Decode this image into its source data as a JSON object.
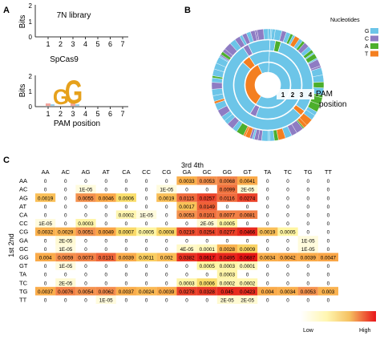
{
  "panels": {
    "a": {
      "label": "A",
      "top_logo": {
        "title": "7N library",
        "ylabel": "Bits",
        "yticks": [
          "2",
          "1",
          "0"
        ]
      },
      "bottom_logo": {
        "title": "SpCas9",
        "ylabel": "Bits",
        "yticks": [
          "2",
          "1",
          "0"
        ],
        "letters": [
          "G",
          "G"
        ]
      },
      "xticks": [
        "1",
        "2",
        "3",
        "4",
        "5",
        "6",
        "7"
      ],
      "xlabel": "PAM position"
    },
    "b": {
      "label": "B",
      "legend_title": "Nucleotides",
      "legend": [
        {
          "name": "G",
          "color": "#6CC5E8"
        },
        {
          "name": "C",
          "color": "#8E7CC3"
        },
        {
          "name": "A",
          "color": "#4CAF2C"
        },
        {
          "name": "T",
          "color": "#F47F20"
        }
      ],
      "ring_labels": [
        "1",
        "2",
        "3",
        "4"
      ],
      "annotation": "PAM position"
    },
    "c": {
      "label": "C",
      "col_header": "3rd 4th",
      "row_header": "1st 2nd",
      "legend_low": "Low",
      "legend_high": "High"
    }
  },
  "chart_data": [
    {
      "type": "sequence-logo",
      "title": "7N library",
      "ylabel": "Bits",
      "xlabel": "PAM position",
      "x": [
        1,
        2,
        3,
        4,
        5,
        6,
        7
      ],
      "ylim": [
        0,
        2
      ],
      "values": [
        0,
        0,
        0,
        0,
        0,
        0,
        0
      ]
    },
    {
      "type": "sequence-logo",
      "title": "SpCas9",
      "ylabel": "Bits",
      "xlabel": "PAM position",
      "x": [
        1,
        2,
        3,
        4,
        5,
        6,
        7
      ],
      "ylim": [
        0,
        2
      ],
      "letters": [
        {
          "position": 2,
          "letter": "G",
          "bits": 1.2
        },
        {
          "position": 3,
          "letter": "G",
          "bits": 1.6
        }
      ]
    },
    {
      "type": "pie",
      "subtype": "sunburst",
      "rings": [
        "1",
        "2",
        "3",
        "4"
      ],
      "annotation": "PAM position"
    },
    {
      "type": "heatmap",
      "col_header": "3rd 4th",
      "row_header": "1st 2nd",
      "columns": [
        "AA",
        "AC",
        "AG",
        "AT",
        "CA",
        "CC",
        "CG",
        "GA",
        "GC",
        "GG",
        "GT",
        "TA",
        "TC",
        "TG",
        "TT"
      ],
      "rows": [
        "AA",
        "AC",
        "AG",
        "AT",
        "CA",
        "CC",
        "CG",
        "GA",
        "GC",
        "GG",
        "GT",
        "TA",
        "TC",
        "TG",
        "TT"
      ],
      "cells": [
        [
          "0",
          "0",
          "0",
          "0",
          "0",
          "0",
          "0",
          "0.0033",
          "0.0053",
          "0.0068",
          "0.0041",
          "0",
          "0",
          "0",
          "0"
        ],
        [
          "0",
          "0",
          "1E-05",
          "0",
          "0",
          "0",
          "1E-05",
          "0",
          "0",
          "0.0099",
          "2E-05",
          "0",
          "0",
          "0",
          "0"
        ],
        [
          "0.0019",
          "0",
          "0.0055",
          "0.0046",
          "0.0006",
          "0",
          "0.0019",
          "0.0115",
          "0.0257",
          "0.0116",
          "0.0274",
          "0",
          "0",
          "0",
          "0"
        ],
        [
          "0",
          "0",
          "0",
          "0",
          "0",
          "0",
          "0",
          "0.0017",
          "0.0149",
          "0",
          "0",
          "0",
          "0",
          "0",
          "0"
        ],
        [
          "0",
          "0",
          "0",
          "0",
          "0.0002",
          "1E-05",
          "0",
          "0.0053",
          "0.0101",
          "0.0077",
          "0.0081",
          "0",
          "0",
          "0",
          "0"
        ],
        [
          "1E-05",
          "0",
          "0.0003",
          "0",
          "0",
          "0",
          "0",
          "0",
          "2E-05",
          "0.0005",
          "0",
          "0",
          "0",
          "0",
          "0"
        ],
        [
          "0.0032",
          "0.0029",
          "0.0051",
          "0.0049",
          "0.0007",
          "0.0005",
          "0.0008",
          "0.0219",
          "0.0254",
          "0.0277",
          "0.0466",
          "0.0019",
          "0.0005",
          "0",
          "0"
        ],
        [
          "0",
          "2E-05",
          "0",
          "0",
          "0",
          "0",
          "0",
          "0",
          "0",
          "0",
          "0",
          "0",
          "0",
          "1E-05",
          "0"
        ],
        [
          "0",
          "1E-05",
          "0",
          "0",
          "0",
          "0",
          "0",
          "4E-05",
          "0.0001",
          "0.0028",
          "0.0009",
          "0",
          "0",
          "1E-05",
          "0"
        ],
        [
          "0.004",
          "0.0059",
          "0.0073",
          "0.0131",
          "0.0039",
          "0.0011",
          "0.002",
          "0.0382",
          "0.0617",
          "0.0495",
          "0.0687",
          "0.0034",
          "0.0042",
          "0.0039",
          "0.0047"
        ],
        [
          "0",
          "1E-05",
          "0",
          "0",
          "0",
          "0",
          "0",
          "0",
          "0.0005",
          "0.0003",
          "0.0001",
          "0",
          "0",
          "0",
          "0"
        ],
        [
          "0",
          "0",
          "0",
          "0",
          "0",
          "0",
          "0",
          "0",
          "0",
          "0.0003",
          "0",
          "0",
          "0",
          "0",
          "0"
        ],
        [
          "0",
          "2E-05",
          "0",
          "0",
          "0",
          "0",
          "0",
          "0.0003",
          "0.0006",
          "0.0002",
          "0.0002",
          "0",
          "0",
          "0",
          "0"
        ],
        [
          "0.0037",
          "0.0076",
          "0.0054",
          "0.0062",
          "0.0037",
          "0.0024",
          "0.0039",
          "0.0278",
          "0.0328",
          "0.045",
          "0.0423",
          "0.004",
          "0.0034",
          "0.0053",
          "0.003"
        ],
        [
          "0",
          "0",
          "0",
          "1E-05",
          "0",
          "0",
          "0",
          "0",
          "0",
          "2E-05",
          "2E-05",
          "0",
          "0",
          "0",
          "0"
        ]
      ]
    }
  ]
}
